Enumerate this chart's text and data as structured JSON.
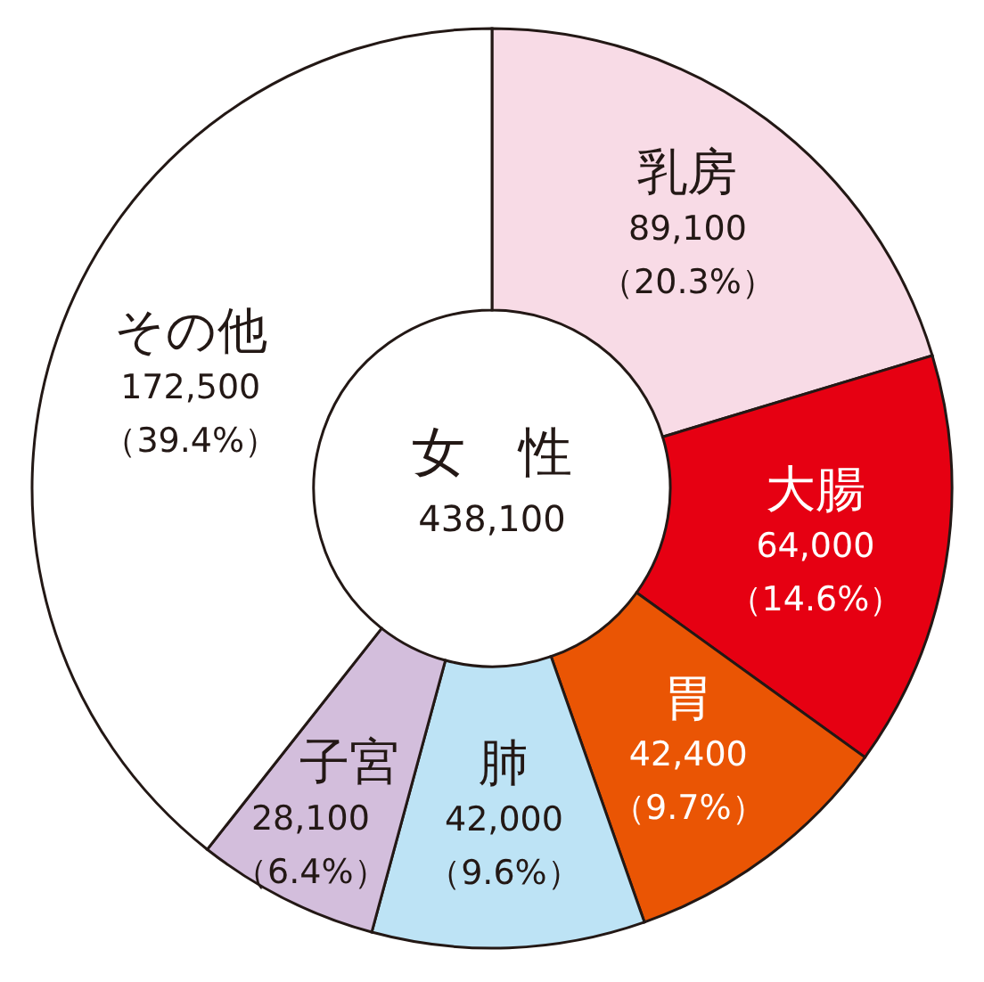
{
  "chart_data": {
    "type": "donut",
    "title": "女　性",
    "subtitle": "438,100",
    "categories": [
      "乳房",
      "大腸",
      "胃",
      "肺",
      "子宮",
      "その他"
    ],
    "values": [
      89100,
      64000,
      42400,
      42000,
      28100,
      172500
    ],
    "colors": [
      "#f8dbe6",
      "#e60012",
      "#ea5504",
      "#bde3f5",
      "#d3bedc",
      "#ffffff"
    ],
    "value_labels": [
      "89,100\n（20.3%）",
      "64,000\n（14.6%）",
      "42,400\n（9.7%）",
      "42,000\n（9.6%）",
      "28,100\n（6.4%）",
      "172,500\n（39.4%）"
    ]
  }
}
